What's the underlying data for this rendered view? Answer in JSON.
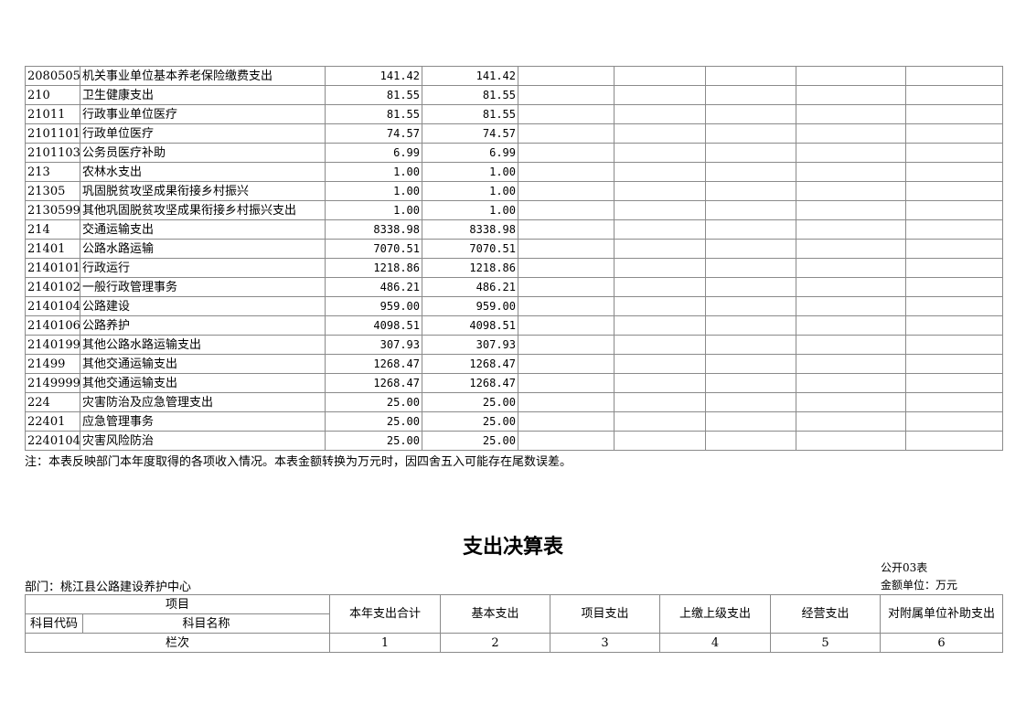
{
  "top_table": {
    "rows": [
      {
        "code": "2080505",
        "name": "机关事业单位基本养老保险缴费支出",
        "total": "141.42",
        "basic": "141.42"
      },
      {
        "code": "210",
        "name": "卫生健康支出",
        "total": "81.55",
        "basic": "81.55"
      },
      {
        "code": "21011",
        "name": "行政事业单位医疗",
        "total": "81.55",
        "basic": "81.55"
      },
      {
        "code": "2101101",
        "name": "行政单位医疗",
        "total": "74.57",
        "basic": "74.57"
      },
      {
        "code": "2101103",
        "name": "公务员医疗补助",
        "total": "6.99",
        "basic": "6.99"
      },
      {
        "code": "213",
        "name": "农林水支出",
        "total": "1.00",
        "basic": "1.00"
      },
      {
        "code": "21305",
        "name": "巩固脱贫攻坚成果衔接乡村振兴",
        "total": "1.00",
        "basic": "1.00"
      },
      {
        "code": "2130599",
        "name": "其他巩固脱贫攻坚成果衔接乡村振兴支出",
        "total": "1.00",
        "basic": "1.00"
      },
      {
        "code": "214",
        "name": "交通运输支出",
        "total": "8338.98",
        "basic": "8338.98"
      },
      {
        "code": "21401",
        "name": "公路水路运输",
        "total": "7070.51",
        "basic": "7070.51"
      },
      {
        "code": "2140101",
        "name": "行政运行",
        "total": "1218.86",
        "basic": "1218.86"
      },
      {
        "code": "2140102",
        "name": "一般行政管理事务",
        "total": "486.21",
        "basic": "486.21"
      },
      {
        "code": "2140104",
        "name": "公路建设",
        "total": "959.00",
        "basic": "959.00"
      },
      {
        "code": "2140106",
        "name": "公路养护",
        "total": "4098.51",
        "basic": "4098.51"
      },
      {
        "code": "2140199",
        "name": "其他公路水路运输支出",
        "total": "307.93",
        "basic": "307.93"
      },
      {
        "code": "21499",
        "name": "其他交通运输支出",
        "total": "1268.47",
        "basic": "1268.47"
      },
      {
        "code": "2149999",
        "name": "其他交通运输支出",
        "total": "1268.47",
        "basic": "1268.47"
      },
      {
        "code": "224",
        "name": "灾害防治及应急管理支出",
        "total": "25.00",
        "basic": "25.00"
      },
      {
        "code": "22401",
        "name": "应急管理事务",
        "total": "25.00",
        "basic": "25.00"
      },
      {
        "code": "2240104",
        "name": "灾害风险防治",
        "total": "25.00",
        "basic": "25.00"
      }
    ],
    "note": "注：本表反映部门本年度取得的各项收入情况。本表金额转换为万元时，因四舍五入可能存在尾数误差。"
  },
  "expense_table": {
    "title": "支出决算表",
    "form_no": "公开03表",
    "unit": "金额单位：万元",
    "department": "部门：桃江县公路建设养护中心",
    "header_item": "项目",
    "header_code": "科目代码",
    "header_name": "科目名称",
    "columns": [
      "本年支出合计",
      "基本支出",
      "项目支出",
      "上缴上级支出",
      "经营支出",
      "对附属单位补助支出"
    ],
    "row_label": "栏次",
    "column_numbers": [
      "1",
      "2",
      "3",
      "4",
      "5",
      "6"
    ]
  }
}
